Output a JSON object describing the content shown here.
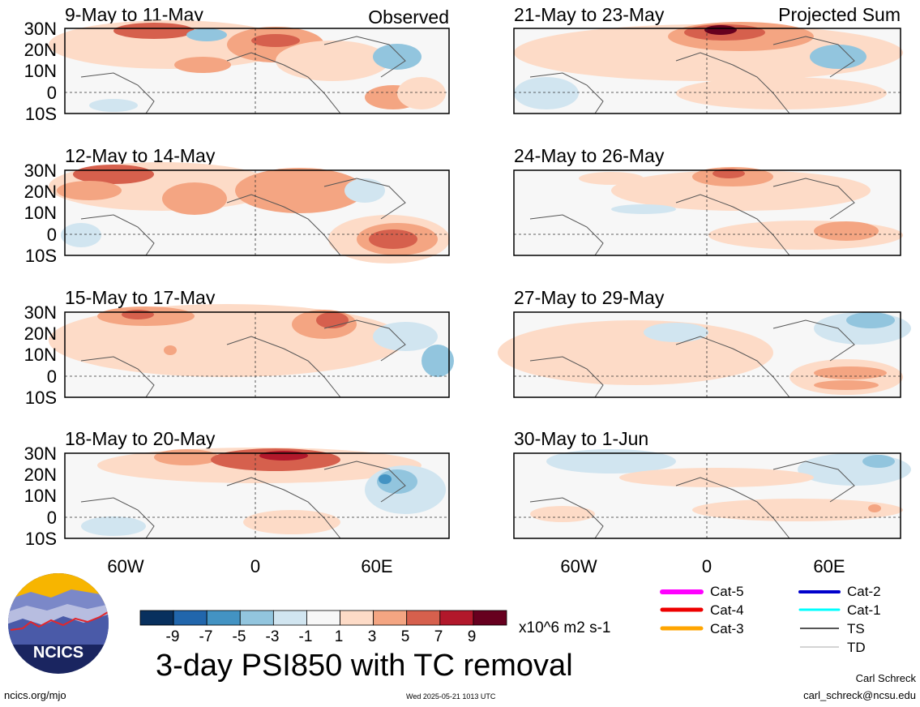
{
  "panels_left": [
    {
      "title": "9-May to 11-May",
      "tag": "Observed"
    },
    {
      "title": "12-May to 14-May",
      "tag": ""
    },
    {
      "title": "15-May to 17-May",
      "tag": ""
    },
    {
      "title": "18-May to 20-May",
      "tag": ""
    }
  ],
  "panels_right": [
    {
      "title": "21-May to 23-May",
      "tag": "Projected Sum"
    },
    {
      "title": "24-May to 26-May",
      "tag": ""
    },
    {
      "title": "27-May to 29-May",
      "tag": ""
    },
    {
      "title": "30-May to 1-Jun",
      "tag": ""
    }
  ],
  "lat_labels": [
    "30N",
    "20N",
    "10N",
    "0",
    "10S"
  ],
  "lon_labels": [
    "60W",
    "0",
    "60E"
  ],
  "colorbar": {
    "ticks": [
      "-9",
      "-7",
      "-5",
      "-3",
      "-1",
      "1",
      "3",
      "5",
      "7",
      "9"
    ],
    "units": "x10^6 m2 s-1",
    "colors": [
      "#08305e",
      "#2166ac",
      "#4393c3",
      "#92c5de",
      "#d1e5f0",
      "#f7f7f7",
      "#fddbc7",
      "#f4a582",
      "#d6604d",
      "#b2182b",
      "#67001f"
    ]
  },
  "legend": [
    {
      "label": "Cat-5",
      "color": "#ff00ff"
    },
    {
      "label": "Cat-2",
      "color": "#0000cc"
    },
    {
      "label": "Cat-4",
      "color": "#ee0000"
    },
    {
      "label": "Cat-1",
      "color": "#00ffff"
    },
    {
      "label": "Cat-3",
      "color": "#ffa500"
    },
    {
      "label": "TS",
      "color": "#555555"
    },
    {
      "label": "TD",
      "color": "#aaaaaa"
    }
  ],
  "logo_text": "NCICS",
  "main_title": "3-day PSI850 with TC removal",
  "credit_name": "Carl Schreck",
  "credit_email": "carl_schreck@ncsu.edu",
  "url": "ncics.org/mjo",
  "timestamp": "Wed 2025-05-21 1013 UTC"
}
